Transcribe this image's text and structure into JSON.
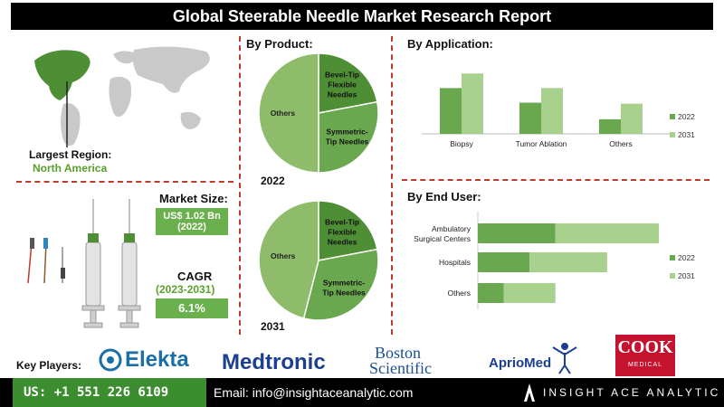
{
  "title": "Global Steerable Needle Market Research Report",
  "region": {
    "label": "Largest Region:",
    "value": "North America"
  },
  "market_size": {
    "label": "Market Size:",
    "value": "US$ 1.02 Bn",
    "year": "(2022)"
  },
  "cagr": {
    "label": "CAGR",
    "period": "(2023-2031)",
    "value": "6.1%"
  },
  "product": {
    "header": "By Product:",
    "year_2022": "2022",
    "year_2031": "2031"
  },
  "application": {
    "header": "By Application:"
  },
  "end_user": {
    "header": "By End User:"
  },
  "key_players": {
    "label": "Key Players:",
    "players": [
      "Elekta",
      "Medtronic",
      "Boston",
      "Scientific",
      "AprioMed",
      "COOK",
      "MEDICAL"
    ]
  },
  "footer": {
    "phone": "US: +1 551 226 6109",
    "email": "Email: info@insightaceanalytic.com",
    "brand": "INSIGHT ACE ANALYTIC"
  },
  "colors": {
    "dark_green": "#4e8f35",
    "mid_green": "#6aa84f",
    "light_green": "#a9d18e",
    "red_dash": "#c0392b"
  },
  "chart_data": [
    {
      "type": "pie",
      "year": "2022",
      "slices": [
        {
          "label": "Bevel-Tip Flexible Needles",
          "value": 22
        },
        {
          "label": "Symmetric-Tip Needles",
          "value": 28
        },
        {
          "label": "Others",
          "value": 50
        }
      ]
    },
    {
      "type": "pie",
      "year": "2031",
      "slices": [
        {
          "label": "Bevel-Tip Flexible Needles",
          "value": 22
        },
        {
          "label": "Symmetric-Tip Needles",
          "value": 32
        },
        {
          "label": "Others",
          "value": 46
        }
      ]
    },
    {
      "type": "bar",
      "categories": [
        "Biopsy",
        "Tumor Ablation",
        "Others"
      ],
      "series": [
        {
          "name": "2022",
          "values": [
            47,
            32,
            15
          ]
        },
        {
          "name": "2031",
          "values": [
            62,
            47,
            31
          ]
        }
      ],
      "ylim": [
        0,
        65
      ],
      "legend": "right"
    },
    {
      "type": "bar",
      "orientation": "horizontal",
      "stacked": true,
      "categories": [
        "Ambulatory Surgical Centers",
        "Hospitals",
        "Others"
      ],
      "series": [
        {
          "name": "2022",
          "values": [
            30,
            20,
            10
          ]
        },
        {
          "name": "2031",
          "values": [
            40,
            30,
            20
          ]
        }
      ],
      "xlim": [
        0,
        70
      ],
      "legend": "right"
    }
  ]
}
